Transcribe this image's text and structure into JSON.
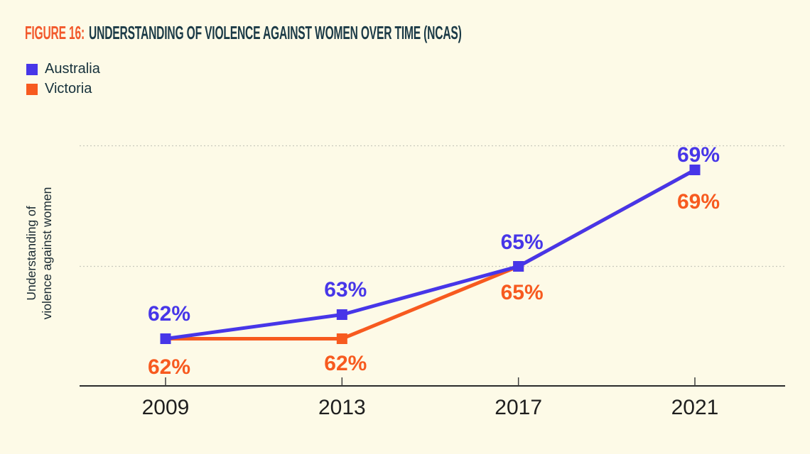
{
  "figure": {
    "label": "FIGURE 16:",
    "title": "UNDERSTANDING OF VIOLENCE AGAINST WOMEN OVER TIME (NCAS)"
  },
  "chart_data": {
    "type": "line",
    "title": "FIGURE 16: UNDERSTANDING OF VIOLENCE AGAINST WOMEN OVER TIME (NCAS)",
    "categories": [
      "2009",
      "2013",
      "2017",
      "2021"
    ],
    "series": [
      {
        "name": "Australia",
        "color": "#4736E8",
        "values": [
          62,
          63,
          65,
          69
        ],
        "point_labels": [
          "62%",
          "63%",
          "65%",
          "69%"
        ]
      },
      {
        "name": "Victoria",
        "color": "#F75A1F",
        "values": [
          62,
          62,
          65,
          69
        ],
        "point_labels": [
          "62%",
          "62%",
          "65%",
          "69%"
        ]
      }
    ],
    "xlabel": "",
    "ylabel": "Understanding of violence against women",
    "ylabel_lines": [
      "Understanding of",
      "violence against women"
    ],
    "ylim": [
      60,
      71
    ],
    "gridline_values": [
      70,
      65
    ],
    "grid": "dotted-horizontal",
    "legend_position": "top-left",
    "marker": "square"
  },
  "colors": {
    "background": "#FDFAE7",
    "title_accent": "#F2582B",
    "title_text": "#1B3A46",
    "australia": "#4736E8",
    "victoria": "#F75A1F",
    "axis": "#2B2B2B",
    "tick": "#3F3F3F",
    "gridline": "#C9C9BC",
    "year_label": "#1F1F1F",
    "ylabel_text": "#1B2B33"
  }
}
